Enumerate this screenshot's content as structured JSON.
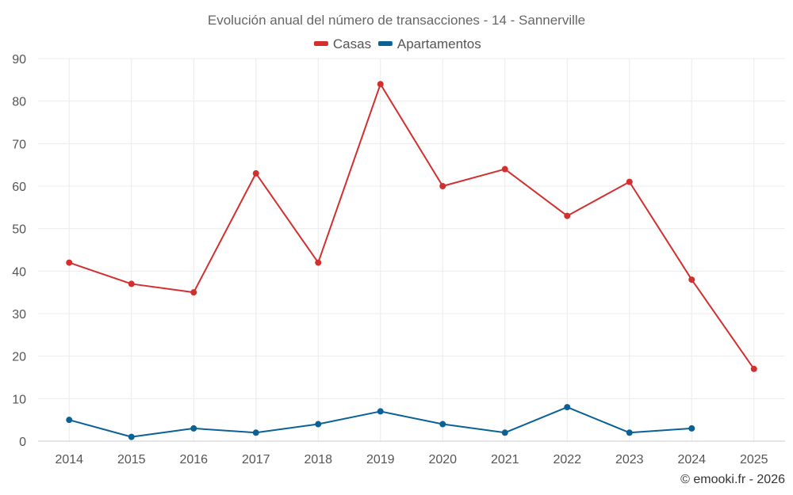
{
  "chart_data": {
    "type": "line",
    "title": "Evolución anual del número de transacciones - 14 - Sannerville",
    "xlabel": "",
    "ylabel": "",
    "categories": [
      "2014",
      "2015",
      "2016",
      "2017",
      "2018",
      "2019",
      "2020",
      "2021",
      "2022",
      "2023",
      "2024",
      "2025"
    ],
    "ylim": [
      0,
      90
    ],
    "yticks": [
      0,
      10,
      20,
      30,
      40,
      50,
      60,
      70,
      80,
      90
    ],
    "grid": true,
    "legend_position": "top-center",
    "series": [
      {
        "name": "Casas",
        "color": "#d32f2f",
        "values": [
          42,
          37,
          35,
          63,
          42,
          84,
          60,
          64,
          53,
          61,
          38,
          17
        ]
      },
      {
        "name": "Apartamentos",
        "color": "#0a6196",
        "values": [
          5,
          1,
          3,
          2,
          4,
          7,
          4,
          2,
          8,
          2,
          3,
          null
        ]
      }
    ]
  },
  "credit": "© emooki.fr - 2026"
}
